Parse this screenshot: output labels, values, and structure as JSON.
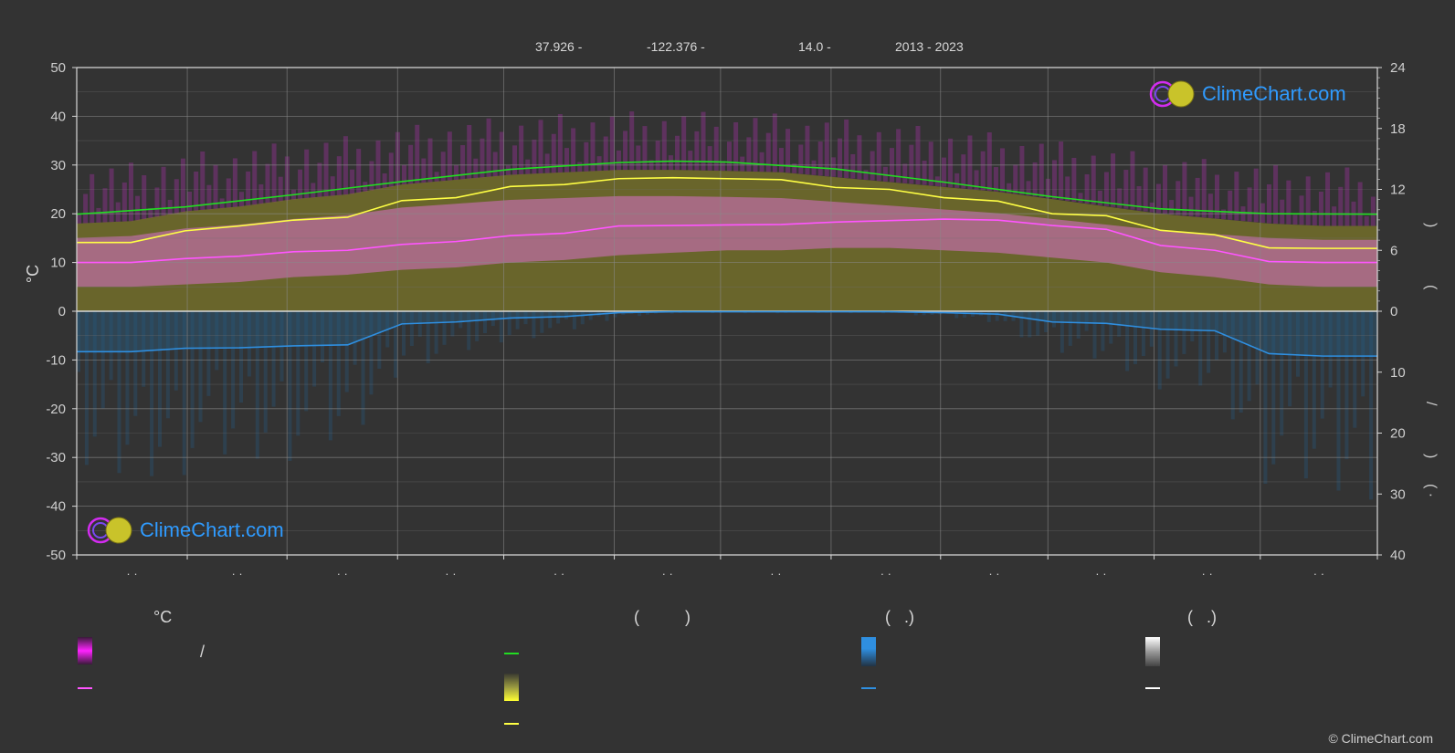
{
  "header": {
    "lat": "37.926 -",
    "lon": "-122.376 -",
    "elev": "14.0 -",
    "years": "2013 - 2023"
  },
  "logo_text": "ClimeChart.com",
  "copyright": "© ClimeChart.com",
  "legend": {
    "temp_unit": "°C",
    "col2_head": "(          )",
    "col3_head": "(   .)",
    "col4_head": "(   .)",
    "slash": "/"
  },
  "colors": {
    "background": "#333333",
    "daylight": "#22dd22",
    "sunshine": "#ffff44",
    "max_temp": "#ff55ff",
    "precip": "#2f8fe0",
    "snow": "#ffffff",
    "logo": "#2f9bff"
  },
  "chart_data": {
    "type": "line",
    "left_axis": {
      "label": "°C",
      "ticks": [
        50,
        40,
        30,
        20,
        10,
        0,
        -10,
        -20,
        -30,
        -40,
        -50
      ],
      "range": [
        -50,
        50
      ]
    },
    "right_axis_top": {
      "ticks": [
        24,
        18,
        12,
        6,
        0
      ],
      "range": [
        0,
        24
      ]
    },
    "right_axis_bottom": {
      "ticks": [
        0,
        10,
        20,
        30,
        40
      ],
      "range": [
        0,
        40
      ]
    },
    "x_tick_labels": [
      "· ·",
      "· ·",
      "· ·",
      "· ·",
      "· ·",
      "· ·",
      "· ·",
      "· ·",
      "· ·",
      "· ·",
      "· ·",
      "· ·"
    ],
    "x_range": [
      0,
      12
    ],
    "series": [
      {
        "key": "daylight",
        "x": [
          0,
          1,
          2,
          3,
          4,
          5,
          5.5,
          6,
          7,
          8,
          9,
          10,
          11,
          12
        ],
        "y": [
          19.9,
          21.4,
          23.9,
          26.6,
          29.1,
          30.5,
          30.8,
          30.6,
          29.2,
          26.5,
          23.5,
          21.0,
          20.0,
          19.9
        ]
      },
      {
        "key": "sunshine",
        "x": [
          0,
          0.5,
          1,
          1.5,
          2,
          2.5,
          3,
          3.5,
          4,
          4.5,
          5,
          5.5,
          6,
          6.5,
          7,
          7.5,
          8,
          8.5,
          9,
          9.5,
          10,
          10.5,
          11,
          11.5,
          12
        ],
        "y": [
          14.1,
          14.1,
          16.5,
          17.5,
          18.7,
          19.3,
          22.7,
          23.3,
          25.6,
          26.0,
          27.2,
          27.4,
          27.2,
          27.0,
          25.4,
          25.0,
          23.3,
          22.6,
          20.0,
          19.6,
          16.6,
          15.7,
          13.0,
          12.9,
          12.9
        ]
      },
      {
        "key": "max_temp",
        "x": [
          0,
          0.5,
          1,
          1.5,
          2,
          2.5,
          3,
          3.5,
          4,
          4.5,
          5,
          5.5,
          6,
          6.5,
          7,
          7.5,
          8,
          8.5,
          9,
          9.5,
          10,
          10.5,
          11,
          11.5,
          12
        ],
        "y": [
          10.0,
          10.0,
          10.8,
          11.3,
          12.2,
          12.5,
          13.7,
          14.3,
          15.5,
          16.0,
          17.5,
          17.6,
          17.7,
          17.8,
          18.3,
          18.6,
          18.9,
          18.7,
          17.6,
          16.8,
          13.5,
          12.5,
          10.2,
          10.0,
          10.0
        ]
      },
      {
        "key": "precip",
        "x": [
          0,
          0.5,
          1,
          1.5,
          2,
          2.5,
          3,
          3.5,
          4,
          4.5,
          5,
          5.5,
          6,
          6.5,
          7,
          7.5,
          8,
          8.5,
          9,
          9.5,
          10,
          10.5,
          11,
          11.5,
          12
        ],
        "y": [
          -8.3,
          -8.3,
          -7.6,
          -7.5,
          -7.1,
          -6.9,
          -2.6,
          -2.2,
          -1.4,
          -1.1,
          -0.3,
          -0.1,
          -0.1,
          -0.1,
          -0.1,
          -0.1,
          -0.3,
          -0.6,
          -2.2,
          -2.5,
          -3.7,
          -4.0,
          -8.7,
          -9.2,
          -9.2
        ]
      }
    ],
    "bands": {
      "sunshine_band_top": [
        18.0,
        18.5,
        20.5,
        21.5,
        23.0,
        24.0,
        26.0,
        27.0,
        28.0,
        28.5,
        29.0,
        29.0,
        28.8,
        28.5,
        27.5,
        26.5,
        25.5,
        24.5,
        23.0,
        21.5,
        20.0,
        19.0,
        18.0,
        17.5,
        17.5
      ],
      "temp_band_low": [
        5.0,
        5.0,
        5.5,
        6.0,
        7.0,
        7.5,
        8.5,
        9.0,
        10.0,
        10.5,
        11.5,
        12.0,
        12.5,
        12.5,
        13.0,
        13.0,
        12.5,
        12.0,
        11.0,
        10.0,
        8.0,
        7.0,
        5.5,
        5.0,
        5.0
      ]
    }
  }
}
